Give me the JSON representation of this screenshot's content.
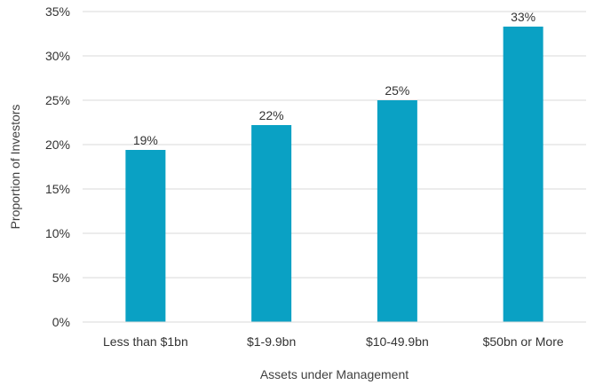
{
  "chart_data": {
    "type": "bar",
    "title": "",
    "xlabel": "Assets under Management",
    "ylabel": "Proportion of Investors",
    "categories": [
      "Less than $1bn",
      "$1-9.9bn",
      "$10-49.9bn",
      "$50bn or More"
    ],
    "values": [
      19.4,
      22.2,
      25.0,
      33.3
    ],
    "data_labels": [
      "19%",
      "22%",
      "25%",
      "33%"
    ],
    "ylim": [
      0,
      35
    ],
    "yticks": [
      0,
      5,
      10,
      15,
      20,
      25,
      30,
      35
    ],
    "ytick_labels": [
      "0%",
      "5%",
      "10%",
      "15%",
      "20%",
      "25%",
      "30%",
      "35%"
    ],
    "grid": true,
    "legend": "none",
    "bar_color": "#0aa1c4"
  }
}
